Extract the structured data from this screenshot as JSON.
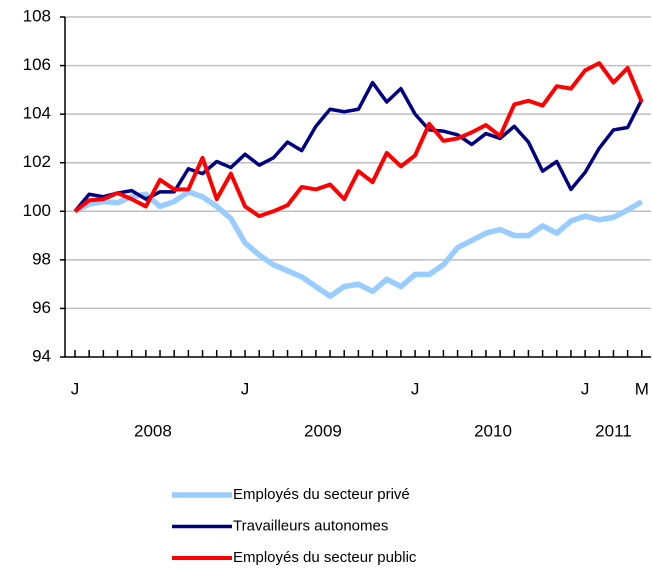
{
  "chart_data": {
    "type": "line",
    "categories": [
      "J",
      null,
      null,
      null,
      null,
      null,
      null,
      null,
      null,
      null,
      null,
      null,
      "J",
      null,
      null,
      null,
      null,
      null,
      null,
      null,
      null,
      null,
      null,
      null,
      "J",
      null,
      null,
      null,
      null,
      null,
      null,
      null,
      null,
      null,
      null,
      null,
      "J",
      null,
      null,
      null,
      "M"
    ],
    "years": [
      "2008",
      "2009",
      "2010",
      "2011"
    ],
    "ylim": [
      94,
      108
    ],
    "yticks": [
      94,
      96,
      98,
      100,
      102,
      104,
      106,
      108
    ],
    "grid": true,
    "series": [
      {
        "name": "Employés du secteur privé",
        "color": "#99ccff",
        "values": [
          100,
          100.3,
          100.4,
          100.35,
          100.6,
          100.7,
          100.2,
          100.4,
          100.8,
          100.6,
          100.2,
          99.7,
          98.7,
          98.2,
          97.8,
          97.55,
          97.3,
          96.9,
          96.5,
          96.9,
          97.0,
          96.7,
          97.2,
          96.9,
          97.4,
          97.4,
          97.8,
          98.5,
          98.8,
          99.1,
          99.25,
          99.0,
          99.0,
          99.4,
          99.1,
          99.6,
          99.8,
          99.65,
          99.75,
          100.05,
          100.4
        ]
      },
      {
        "name": "Travailleurs autonomes",
        "color": "#000080",
        "values": [
          100,
          100.7,
          100.6,
          100.75,
          100.85,
          100.5,
          100.8,
          100.8,
          101.75,
          101.55,
          102.05,
          101.8,
          102.35,
          101.9,
          102.2,
          102.85,
          102.5,
          103.5,
          104.2,
          104.1,
          104.2,
          105.3,
          104.5,
          105.05,
          104.0,
          103.35,
          103.3,
          103.15,
          102.75,
          103.2,
          103.0,
          103.5,
          102.85,
          101.65,
          102.05,
          100.9,
          101.6,
          102.6,
          103.35,
          103.45,
          104.6
        ]
      },
      {
        "name": "Employés du secteur public",
        "color": "#ff0000",
        "values": [
          100,
          100.45,
          100.5,
          100.75,
          100.5,
          100.2,
          101.3,
          100.9,
          100.9,
          102.2,
          100.5,
          101.55,
          100.2,
          99.8,
          100.0,
          100.25,
          101.0,
          100.9,
          101.1,
          100.5,
          101.65,
          101.2,
          102.4,
          101.85,
          102.3,
          103.6,
          102.9,
          103.0,
          103.25,
          103.55,
          103.1,
          104.4,
          104.55,
          104.35,
          105.15,
          105.05,
          105.8,
          106.1,
          105.3,
          105.9,
          104.5
        ]
      }
    ]
  }
}
